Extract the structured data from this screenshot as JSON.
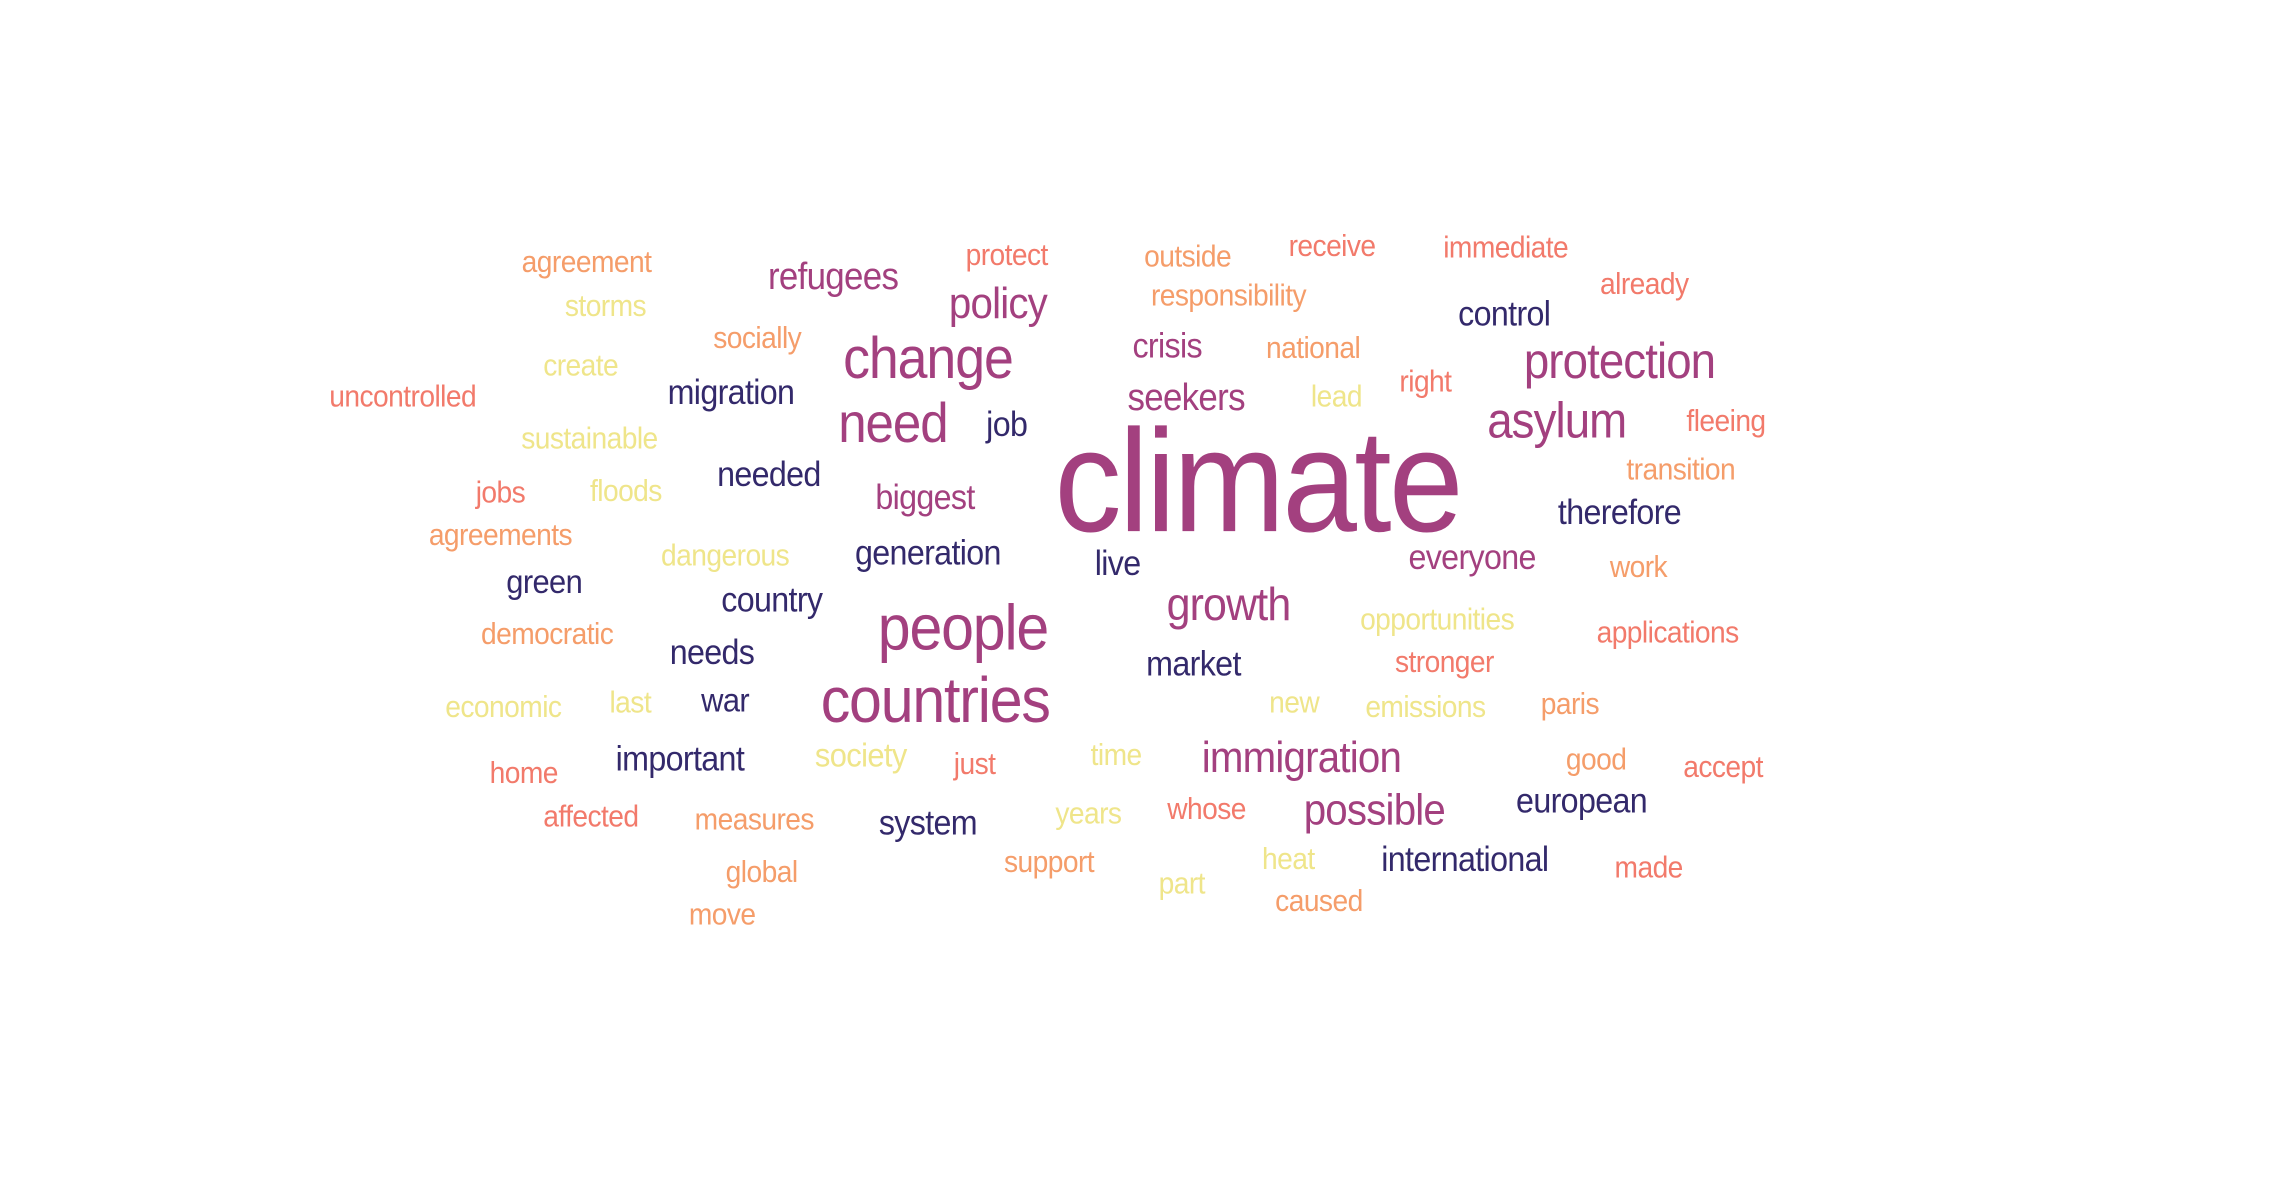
{
  "palette": {
    "purple": "#a3407f",
    "navy": "#33296b",
    "orange": "#f59d6a",
    "salmon": "#f27a6b",
    "yellow": "#efe58a"
  },
  "words": [
    {
      "text": "climate",
      "color": "purple"
    },
    {
      "text": "countries",
      "color": "purple"
    },
    {
      "text": "people",
      "color": "purple"
    },
    {
      "text": "change",
      "color": "purple"
    },
    {
      "text": "need",
      "color": "purple"
    },
    {
      "text": "protection",
      "color": "purple"
    },
    {
      "text": "asylum",
      "color": "purple"
    },
    {
      "text": "growth",
      "color": "purple"
    },
    {
      "text": "immigration",
      "color": "purple"
    },
    {
      "text": "possible",
      "color": "purple"
    },
    {
      "text": "policy",
      "color": "purple"
    },
    {
      "text": "refugees",
      "color": "purple"
    },
    {
      "text": "seekers",
      "color": "purple"
    },
    {
      "text": "crisis",
      "color": "purple"
    },
    {
      "text": "biggest",
      "color": "purple"
    },
    {
      "text": "everyone",
      "color": "purple"
    },
    {
      "text": "migration",
      "color": "navy"
    },
    {
      "text": "job",
      "color": "navy"
    },
    {
      "text": "needed",
      "color": "navy"
    },
    {
      "text": "generation",
      "color": "navy"
    },
    {
      "text": "live",
      "color": "navy"
    },
    {
      "text": "country",
      "color": "navy"
    },
    {
      "text": "needs",
      "color": "navy"
    },
    {
      "text": "green",
      "color": "navy"
    },
    {
      "text": "war",
      "color": "navy"
    },
    {
      "text": "important",
      "color": "navy"
    },
    {
      "text": "system",
      "color": "navy"
    },
    {
      "text": "market",
      "color": "navy"
    },
    {
      "text": "control",
      "color": "navy"
    },
    {
      "text": "therefore",
      "color": "navy"
    },
    {
      "text": "european",
      "color": "navy"
    },
    {
      "text": "international",
      "color": "navy"
    },
    {
      "text": "agreement",
      "color": "orange"
    },
    {
      "text": "socially",
      "color": "orange"
    },
    {
      "text": "agreements",
      "color": "orange"
    },
    {
      "text": "democratic",
      "color": "orange"
    },
    {
      "text": "measures",
      "color": "orange"
    },
    {
      "text": "global",
      "color": "orange"
    },
    {
      "text": "move",
      "color": "orange"
    },
    {
      "text": "support",
      "color": "orange"
    },
    {
      "text": "caused",
      "color": "orange"
    },
    {
      "text": "outside",
      "color": "orange"
    },
    {
      "text": "responsibility",
      "color": "orange"
    },
    {
      "text": "national",
      "color": "orange"
    },
    {
      "text": "transition",
      "color": "orange"
    },
    {
      "text": "work",
      "color": "orange"
    },
    {
      "text": "paris",
      "color": "orange"
    },
    {
      "text": "good",
      "color": "orange"
    },
    {
      "text": "uncontrolled",
      "color": "salmon"
    },
    {
      "text": "jobs",
      "color": "salmon"
    },
    {
      "text": "home",
      "color": "salmon"
    },
    {
      "text": "just",
      "color": "salmon"
    },
    {
      "text": "affected",
      "color": "salmon"
    },
    {
      "text": "protect",
      "color": "salmon"
    },
    {
      "text": "receive",
      "color": "salmon"
    },
    {
      "text": "immediate",
      "color": "salmon"
    },
    {
      "text": "already",
      "color": "salmon"
    },
    {
      "text": "right",
      "color": "salmon"
    },
    {
      "text": "fleeing",
      "color": "salmon"
    },
    {
      "text": "applications",
      "color": "salmon"
    },
    {
      "text": "stronger",
      "color": "salmon"
    },
    {
      "text": "whose",
      "color": "salmon"
    },
    {
      "text": "accept",
      "color": "salmon"
    },
    {
      "text": "made",
      "color": "salmon"
    },
    {
      "text": "storms",
      "color": "yellow"
    },
    {
      "text": "create",
      "color": "yellow"
    },
    {
      "text": "sustainable",
      "color": "yellow"
    },
    {
      "text": "floods",
      "color": "yellow"
    },
    {
      "text": "dangerous",
      "color": "yellow"
    },
    {
      "text": "economic",
      "color": "yellow"
    },
    {
      "text": "last",
      "color": "yellow"
    },
    {
      "text": "society",
      "color": "yellow"
    },
    {
      "text": "time",
      "color": "yellow"
    },
    {
      "text": "years",
      "color": "yellow"
    },
    {
      "text": "part",
      "color": "yellow"
    },
    {
      "text": "heat",
      "color": "yellow"
    },
    {
      "text": "lead",
      "color": "yellow"
    },
    {
      "text": "opportunities",
      "color": "yellow"
    },
    {
      "text": "new",
      "color": "yellow"
    },
    {
      "text": "emissions",
      "color": "yellow"
    }
  ]
}
